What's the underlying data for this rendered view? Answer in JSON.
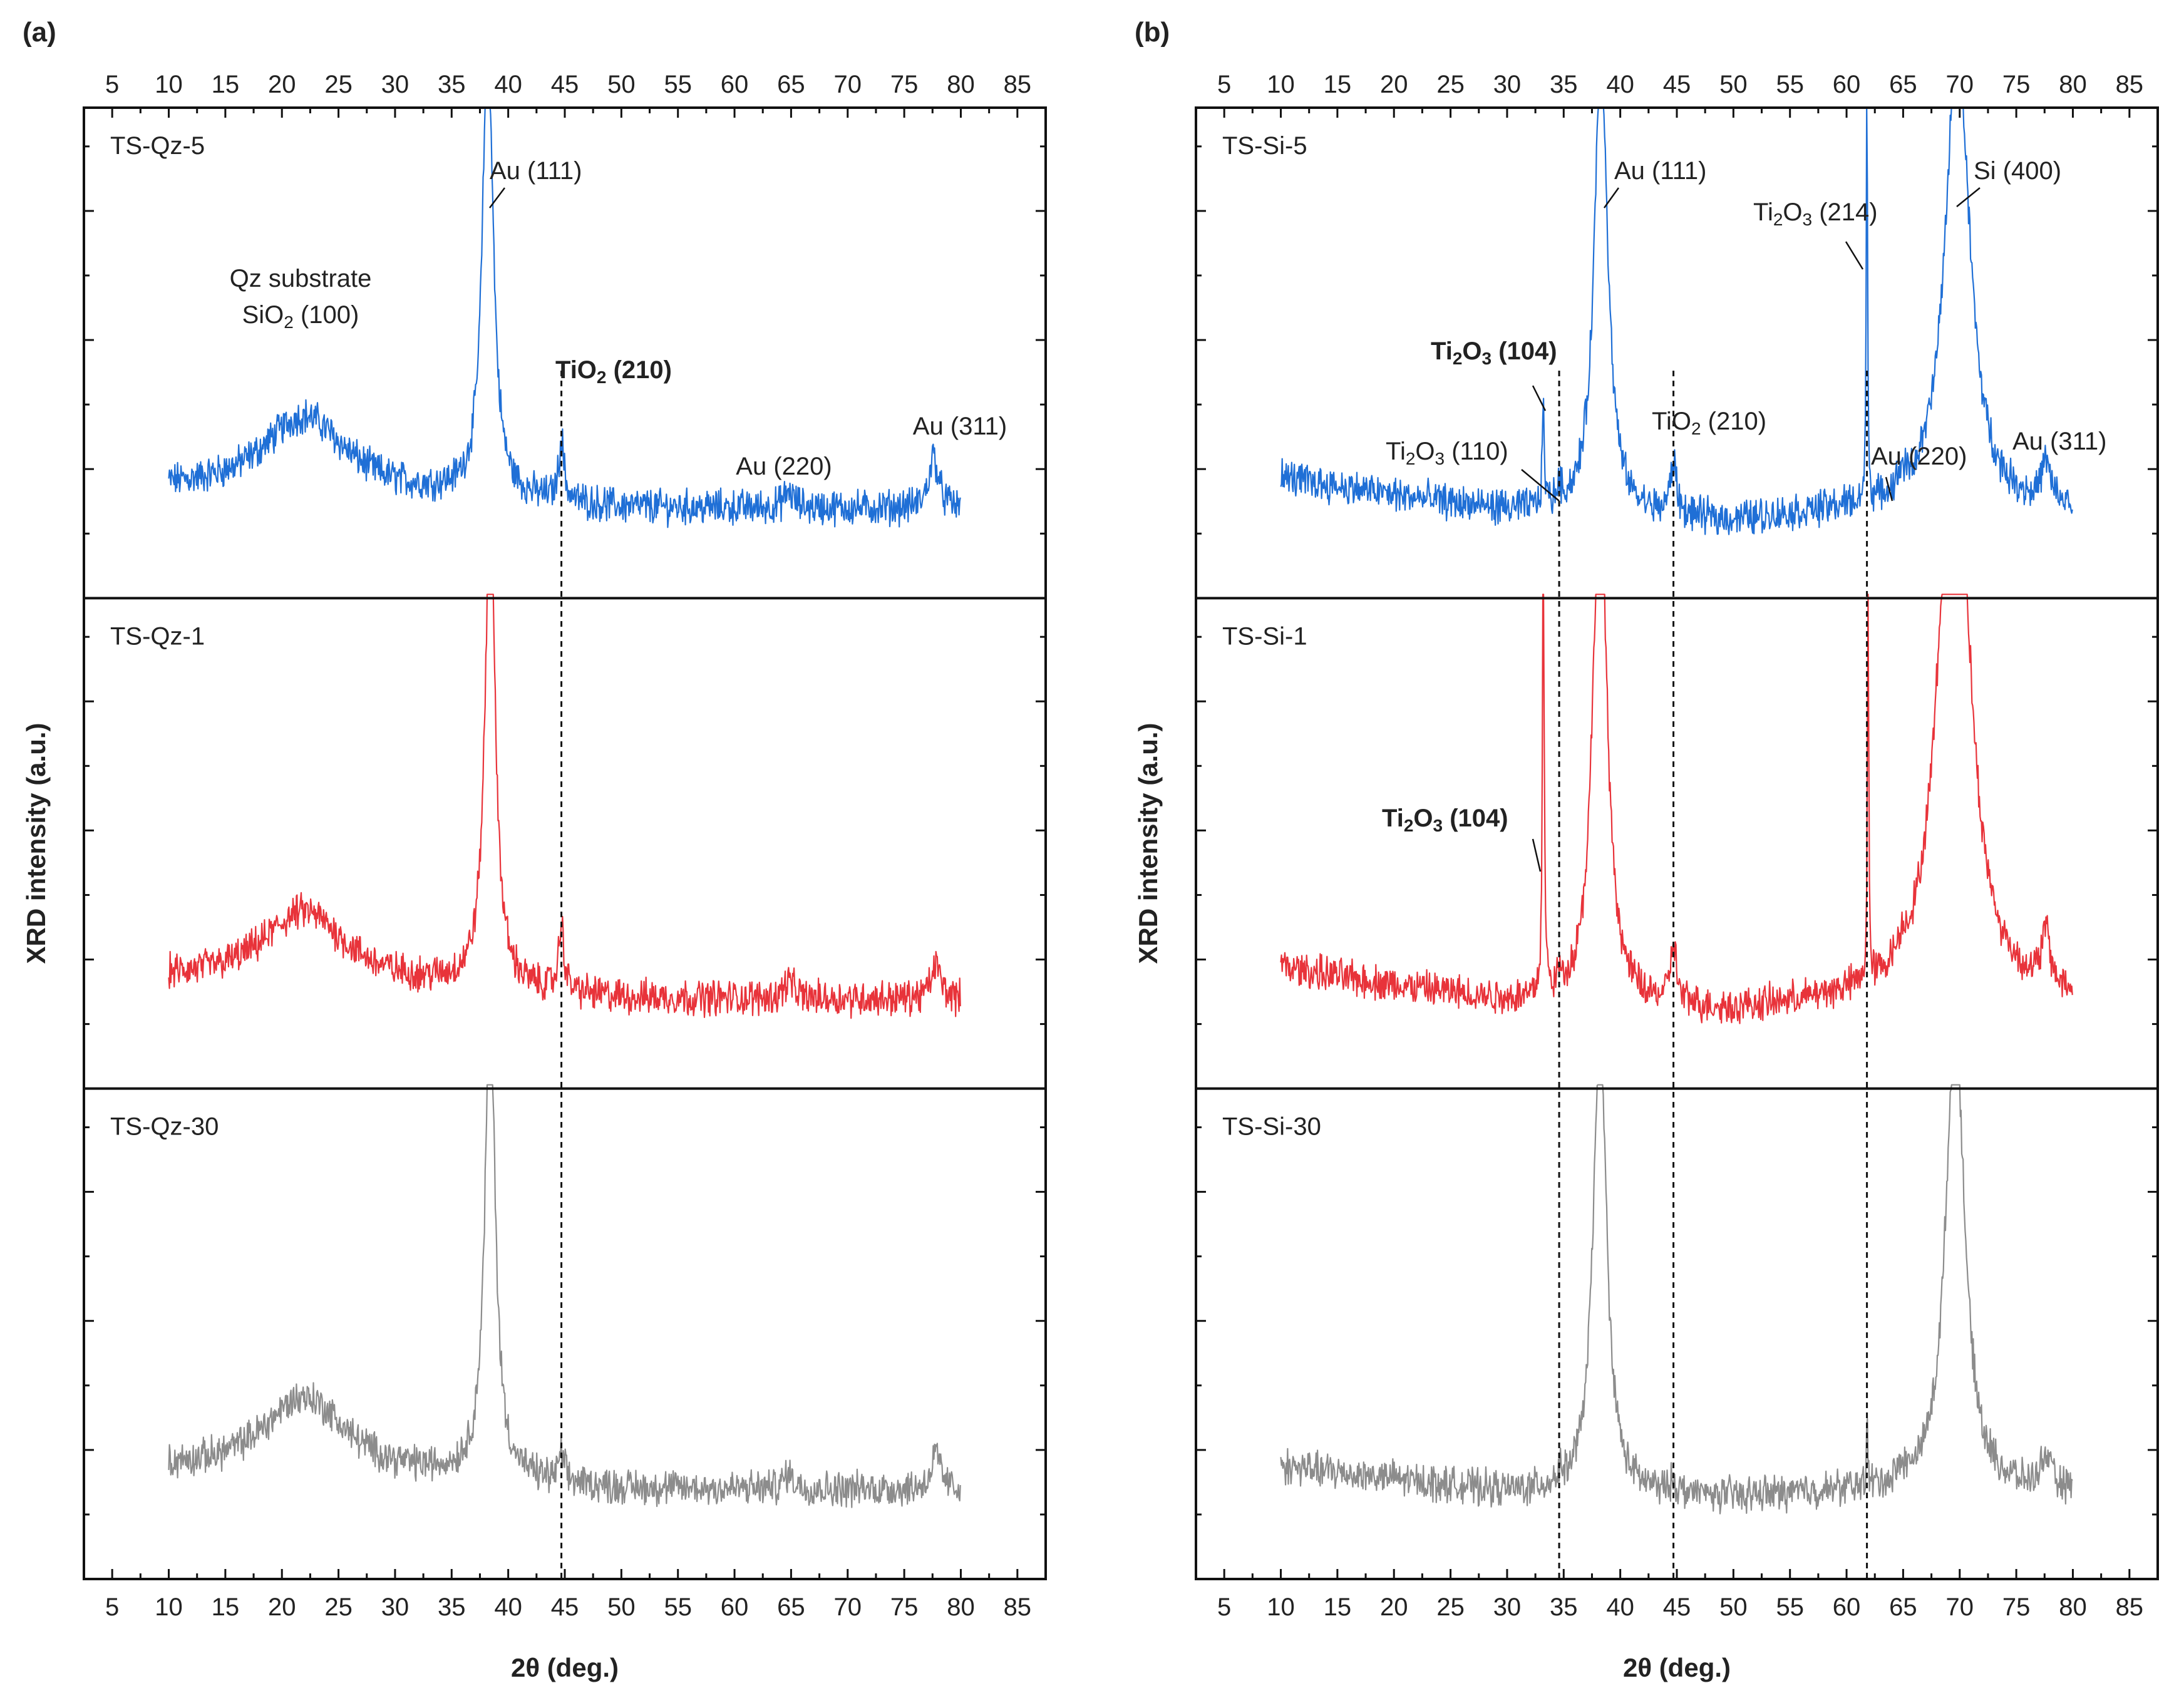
{
  "figure": {
    "ylabel": "XRD intensity (a.u.)",
    "xlabel": "2θ (deg.)",
    "x_ticks": [
      5,
      10,
      15,
      20,
      25,
      30,
      35,
      40,
      45,
      50,
      55,
      60,
      65,
      70,
      75,
      80,
      85
    ]
  },
  "chart_data": [
    {
      "id": "a",
      "type": "line",
      "panel_label": "(a)",
      "xlim": [
        2.5,
        87.5
      ],
      "reference_lines": [
        44.7
      ],
      "series": [
        {
          "name": "TS-Qz-5",
          "color": "#1f6fd6",
          "peaks": [
            [
              22,
              0.3,
              4.5
            ],
            [
              38.2,
              1.8,
              0.55
            ],
            [
              44.7,
              0.23,
              0.28
            ],
            [
              64.8,
              0.06,
              0.5
            ],
            [
              77.6,
              0.2,
              0.5
            ]
          ],
          "base": [
            [
              10,
              0.1
            ],
            [
              30,
              0.07
            ],
            [
              36,
              0.07
            ],
            [
              50,
              0.03
            ],
            [
              80,
              0.03
            ]
          ]
        },
        {
          "name": "TS-Qz-1",
          "color": "#e8333a",
          "peaks": [
            [
              22,
              0.28,
              4.5
            ],
            [
              38.4,
              1.8,
              0.55
            ],
            [
              44.7,
              0.25,
              0.28
            ],
            [
              64.8,
              0.07,
              0.5
            ],
            [
              77.8,
              0.13,
              0.5
            ]
          ],
          "base": [
            [
              10,
              0.1
            ],
            [
              30,
              0.07
            ],
            [
              36,
              0.07
            ],
            [
              50,
              0.03
            ],
            [
              80,
              0.03
            ]
          ]
        },
        {
          "name": "TS-Qz-30",
          "color": "#8c8c8c",
          "peaks": [
            [
              22,
              0.3,
              4.5
            ],
            [
              38.4,
              1.8,
              0.55
            ],
            [
              44.7,
              0.1,
              0.28
            ],
            [
              64.8,
              0.06,
              0.5
            ],
            [
              77.8,
              0.13,
              0.5
            ]
          ],
          "base": [
            [
              10,
              0.1
            ],
            [
              30,
              0.07
            ],
            [
              36,
              0.07
            ],
            [
              50,
              0.03
            ],
            [
              80,
              0.03
            ]
          ]
        }
      ],
      "annotations": [
        {
          "label": "substrate",
          "parts": [
            {
              "t": "Qz substrate"
            }
          ]
        },
        {
          "label": "sio2",
          "parts": [
            {
              "t": "SiO"
            },
            {
              "t": "2",
              "sub": true
            },
            {
              "t": " (100)"
            }
          ]
        },
        {
          "label": "au111",
          "parts": [
            {
              "t": "Au (111)"
            }
          ]
        },
        {
          "label": "tio2",
          "bold": true,
          "parts": [
            {
              "t": "TiO"
            },
            {
              "t": "2",
              "sub": true
            },
            {
              "t": " (210)"
            }
          ]
        },
        {
          "label": "au220",
          "parts": [
            {
              "t": "Au (220)"
            }
          ]
        },
        {
          "label": "au311",
          "parts": [
            {
              "t": "Au (311)"
            }
          ]
        }
      ]
    },
    {
      "id": "b",
      "type": "line",
      "panel_label": "(b)",
      "xlim": [
        2.5,
        87.5
      ],
      "reference_lines": [
        34.6,
        44.7,
        61.8
      ],
      "series": [
        {
          "name": "TS-Si-5",
          "color": "#1f6fd6",
          "peaks": [
            [
              33.2,
              0.4,
              0.1
            ],
            [
              34.6,
              0.06,
              0.3
            ],
            [
              38.3,
              1.8,
              0.7
            ],
            [
              44.7,
              0.2,
              0.32
            ],
            [
              61.8,
              1.8,
              0.06
            ],
            [
              64.9,
              0.06,
              0.4
            ],
            [
              69.8,
              1.8,
              1.3
            ],
            [
              77.6,
              0.15,
              0.45
            ]
          ],
          "base": [
            [
              10,
              0.15
            ],
            [
              20,
              0.08
            ],
            [
              30,
              0.02
            ],
            [
              50,
              -0.02
            ],
            [
              60,
              0.02
            ],
            [
              80,
              0.02
            ]
          ]
        },
        {
          "name": "TS-Si-1",
          "color": "#e8333a",
          "peaks": [
            [
              33.2,
              1.8,
              0.09
            ],
            [
              34.6,
              0.04,
              0.3
            ],
            [
              38.2,
              2.0,
              0.75
            ],
            [
              44.7,
              0.22,
              0.32
            ],
            [
              61.9,
              1.8,
              0.06
            ],
            [
              64.9,
              0.05,
              0.4
            ],
            [
              69.5,
              2.5,
              1.5
            ],
            [
              77.6,
              0.2,
              0.45
            ]
          ],
          "base": [
            [
              10,
              0.15
            ],
            [
              20,
              0.08
            ],
            [
              30,
              0.02
            ],
            [
              50,
              -0.02
            ],
            [
              60,
              0.02
            ],
            [
              80,
              0.02
            ]
          ]
        },
        {
          "name": "TS-Si-30",
          "color": "#8c8c8c",
          "peaks": [
            [
              34.6,
              0.03,
              0.3
            ],
            [
              38.2,
              1.8,
              0.7
            ],
            [
              44.7,
              0.04,
              0.32
            ],
            [
              61.8,
              0.3,
              0.06
            ],
            [
              64.9,
              0.04,
              0.4
            ],
            [
              69.6,
              1.8,
              1.0
            ],
            [
              77.6,
              0.13,
              0.45
            ]
          ],
          "base": [
            [
              10,
              0.12
            ],
            [
              20,
              0.07
            ],
            [
              30,
              0.02
            ],
            [
              50,
              0.0
            ],
            [
              60,
              0.02
            ],
            [
              80,
              0.02
            ]
          ]
        }
      ],
      "annotations": [
        {
          "label": "si5-au111",
          "parts": [
            {
              "t": "Au (111)"
            }
          ]
        },
        {
          "label": "si5-ti2o3-214",
          "parts": [
            {
              "t": "Ti"
            },
            {
              "t": "2",
              "sub": true
            },
            {
              "t": "O"
            },
            {
              "t": "3",
              "sub": true
            },
            {
              "t": " (214)"
            }
          ]
        },
        {
          "label": "si5-si400",
          "parts": [
            {
              "t": "Si (400)"
            }
          ]
        },
        {
          "label": "si5-ti2o3-104",
          "bold": true,
          "parts": [
            {
              "t": "Ti"
            },
            {
              "t": "2",
              "sub": true
            },
            {
              "t": "O"
            },
            {
              "t": "3",
              "sub": true
            },
            {
              "t": " (104)"
            }
          ]
        },
        {
          "label": "si5-ti2o3-110",
          "parts": [
            {
              "t": "Ti"
            },
            {
              "t": "2",
              "sub": true
            },
            {
              "t": "O"
            },
            {
              "t": "3",
              "sub": true
            },
            {
              "t": " (110)"
            }
          ]
        },
        {
          "label": "si5-tio2",
          "parts": [
            {
              "t": "TiO"
            },
            {
              "t": "2",
              "sub": true
            },
            {
              "t": " (210)"
            }
          ]
        },
        {
          "label": "si5-au220",
          "parts": [
            {
              "t": "Au (220)"
            }
          ]
        },
        {
          "label": "si5-au311",
          "parts": [
            {
              "t": "Au (311)"
            }
          ]
        },
        {
          "label": "si1-ti2o3-104",
          "bold": true,
          "parts": [
            {
              "t": "Ti"
            },
            {
              "t": "2",
              "sub": true
            },
            {
              "t": "O"
            },
            {
              "t": "3",
              "sub": true
            },
            {
              "t": " (104)"
            }
          ]
        }
      ]
    }
  ]
}
